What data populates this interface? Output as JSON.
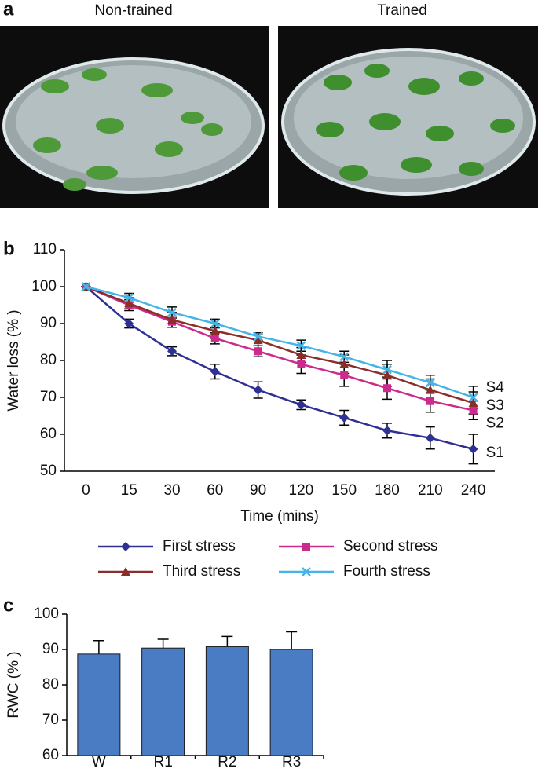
{
  "photos": {
    "panel_label": "a",
    "captions": [
      "Non-trained",
      "Trained"
    ]
  },
  "chart_data": [
    {
      "type": "line",
      "panel_label": "b",
      "x_label": "Time (mins)",
      "y_label": "Water loss (% )",
      "categories": [
        0,
        15,
        30,
        60,
        90,
        120,
        150,
        180,
        210,
        240
      ],
      "ylim": [
        50,
        110
      ],
      "yticks": [
        50,
        60,
        70,
        80,
        90,
        100,
        110
      ],
      "series": [
        {
          "name": "First stress",
          "color": "#2e3192",
          "marker": "diamond",
          "end_label": "S1",
          "values": [
            100,
            90,
            82.5,
            77,
            72,
            68,
            64.5,
            61,
            59,
            56
          ],
          "errors": [
            0,
            1.2,
            1.2,
            2,
            2.2,
            1.3,
            2,
            2,
            3,
            4
          ]
        },
        {
          "name": "Second stress",
          "color": "#cc2a8c",
          "marker": "square",
          "end_label": "S2",
          "values": [
            100,
            95,
            90.5,
            86,
            82.5,
            79,
            76,
            72.5,
            69,
            66.5
          ],
          "errors": [
            0,
            1.5,
            1.5,
            1.5,
            1.5,
            2.5,
            3,
            3,
            3,
            2.5
          ]
        },
        {
          "name": "Third stress",
          "color": "#8b2e2a",
          "marker": "triangle",
          "end_label": "S3",
          "values": [
            100,
            95.5,
            91,
            88,
            85.5,
            81.5,
            79,
            76,
            72,
            68.5
          ],
          "errors": [
            0,
            1.5,
            2,
            2,
            1.5,
            2,
            2.5,
            3,
            3,
            3
          ]
        },
        {
          "name": "Fourth stress",
          "color": "#45b4e6",
          "marker": "x",
          "end_label": "S4",
          "values": [
            100,
            97,
            93,
            90,
            86.5,
            84,
            81,
            77.5,
            74,
            70
          ],
          "errors": [
            0,
            1.2,
            1.5,
            1.2,
            1,
            1.5,
            1.5,
            2.5,
            2,
            3
          ]
        }
      ]
    },
    {
      "type": "bar",
      "panel_label": "c",
      "y_label": "RWC (% )",
      "categories": [
        "W",
        "R1",
        "R2",
        "R3"
      ],
      "values": [
        88.7,
        90.4,
        90.8,
        90
      ],
      "errors": [
        3.8,
        2.5,
        2.9,
        5
      ],
      "color": "#4a7cc4",
      "ylim": [
        60,
        100
      ],
      "yticks": [
        60,
        70,
        80,
        90,
        100
      ]
    }
  ]
}
